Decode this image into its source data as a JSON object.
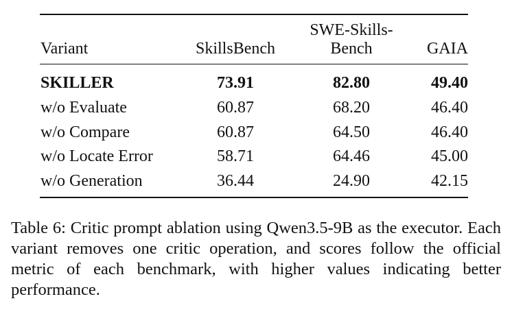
{
  "table": {
    "headers": {
      "variant": "Variant",
      "skillsbench": "SkillsBench",
      "sweskills_line1": "SWE-Skills-",
      "sweskills_line2": "Bench",
      "gaia": "GAIA"
    },
    "rows": [
      {
        "variant": "SKILLER",
        "skillsbench": "73.91",
        "sweskills": "82.80",
        "gaia": "49.40"
      },
      {
        "variant": "w/o Evaluate",
        "skillsbench": "60.87",
        "sweskills": "68.20",
        "gaia": "46.40"
      },
      {
        "variant": "w/o Compare",
        "skillsbench": "60.87",
        "sweskills": "64.50",
        "gaia": "46.40"
      },
      {
        "variant": "w/o Locate Error",
        "skillsbench": "58.71",
        "sweskills": "64.46",
        "gaia": "45.00"
      },
      {
        "variant": "w/o Generation",
        "skillsbench": "36.44",
        "sweskills": "24.90",
        "gaia": "42.15"
      }
    ]
  },
  "caption": "Table 6: Critic prompt ablation using Qwen3.5-9B as the ex­ecutor. Each variant removes one critic operation, and scores follow the official metric of each benchmark, with higher values indicating better performance."
}
